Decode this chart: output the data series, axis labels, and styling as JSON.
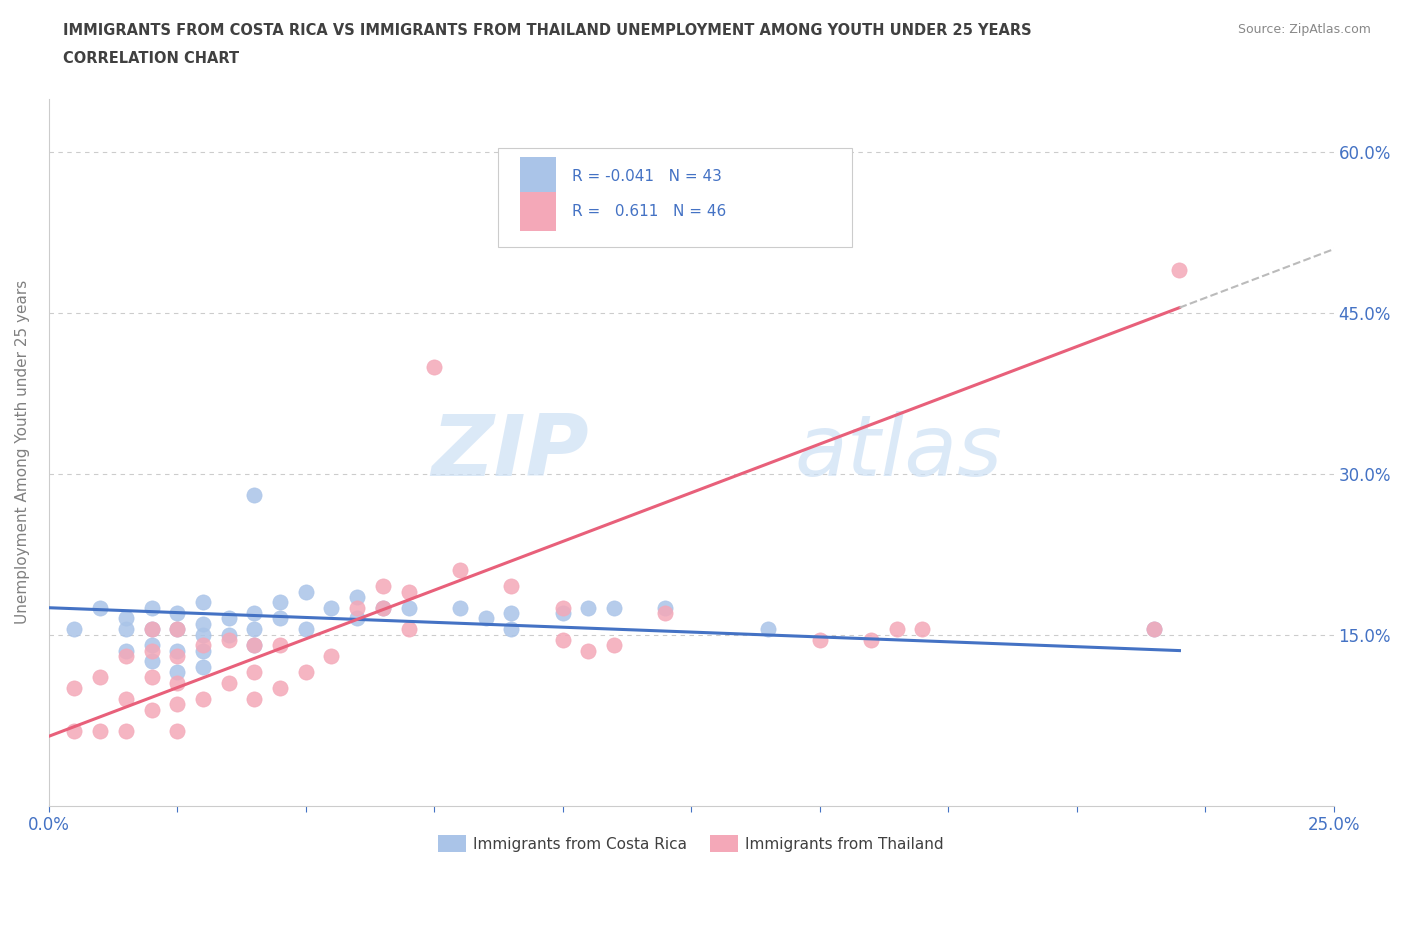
{
  "title_line1": "IMMIGRANTS FROM COSTA RICA VS IMMIGRANTS FROM THAILAND UNEMPLOYMENT AMONG YOUTH UNDER 25 YEARS",
  "title_line2": "CORRELATION CHART",
  "source_text": "Source: ZipAtlas.com",
  "ylabel": "Unemployment Among Youth under 25 years",
  "xlim": [
    0.0,
    0.25
  ],
  "ylim": [
    -0.01,
    0.65
  ],
  "yticks": [
    0.15,
    0.3,
    0.45,
    0.6
  ],
  "ytick_labels": [
    "15.0%",
    "30.0%",
    "45.0%",
    "60.0%"
  ],
  "xticks": [
    0.0,
    0.025,
    0.05,
    0.075,
    0.1,
    0.125,
    0.15,
    0.175,
    0.2,
    0.225,
    0.25
  ],
  "xtick_labels_show": [
    "0.0%",
    "",
    "",
    "",
    "",
    "",
    "",
    "",
    "",
    "",
    "25.0%"
  ],
  "grid_color": "#cccccc",
  "watermark_zip": "ZIP",
  "watermark_atlas": "atlas",
  "legend_R1": "R = -0.041",
  "legend_N1": "N = 43",
  "legend_R2": "R =   0.611",
  "legend_N2": "N = 46",
  "costa_rica_color": "#aac4e8",
  "thailand_color": "#f4a8b8",
  "trend_costa_rica_color": "#4472c4",
  "trend_thailand_color": "#e8607a",
  "trend_dashed_color": "#bbbbbb",
  "costa_rica_x": [
    0.005,
    0.01,
    0.015,
    0.015,
    0.015,
    0.02,
    0.02,
    0.02,
    0.02,
    0.025,
    0.025,
    0.025,
    0.025,
    0.03,
    0.03,
    0.03,
    0.03,
    0.03,
    0.035,
    0.035,
    0.04,
    0.04,
    0.04,
    0.04,
    0.045,
    0.045,
    0.05,
    0.05,
    0.055,
    0.06,
    0.06,
    0.065,
    0.07,
    0.08,
    0.085,
    0.09,
    0.09,
    0.1,
    0.105,
    0.11,
    0.12,
    0.14,
    0.215
  ],
  "costa_rica_y": [
    0.155,
    0.175,
    0.135,
    0.155,
    0.165,
    0.125,
    0.14,
    0.155,
    0.175,
    0.115,
    0.135,
    0.155,
    0.17,
    0.12,
    0.135,
    0.15,
    0.16,
    0.18,
    0.15,
    0.165,
    0.14,
    0.155,
    0.17,
    0.28,
    0.165,
    0.18,
    0.155,
    0.19,
    0.175,
    0.165,
    0.185,
    0.175,
    0.175,
    0.175,
    0.165,
    0.155,
    0.17,
    0.17,
    0.175,
    0.175,
    0.175,
    0.155,
    0.155
  ],
  "thailand_x": [
    0.005,
    0.005,
    0.01,
    0.01,
    0.015,
    0.015,
    0.015,
    0.02,
    0.02,
    0.02,
    0.02,
    0.025,
    0.025,
    0.025,
    0.025,
    0.025,
    0.03,
    0.03,
    0.035,
    0.035,
    0.04,
    0.04,
    0.04,
    0.045,
    0.045,
    0.05,
    0.055,
    0.06,
    0.065,
    0.065,
    0.07,
    0.07,
    0.075,
    0.08,
    0.09,
    0.1,
    0.1,
    0.105,
    0.11,
    0.12,
    0.15,
    0.16,
    0.165,
    0.17,
    0.215,
    0.22
  ],
  "thailand_y": [
    0.06,
    0.1,
    0.06,
    0.11,
    0.06,
    0.09,
    0.13,
    0.08,
    0.11,
    0.135,
    0.155,
    0.06,
    0.085,
    0.105,
    0.13,
    0.155,
    0.09,
    0.14,
    0.105,
    0.145,
    0.09,
    0.115,
    0.14,
    0.1,
    0.14,
    0.115,
    0.13,
    0.175,
    0.175,
    0.195,
    0.155,
    0.19,
    0.4,
    0.21,
    0.195,
    0.145,
    0.175,
    0.135,
    0.14,
    0.17,
    0.145,
    0.145,
    0.155,
    0.155,
    0.155,
    0.49
  ],
  "background_color": "#ffffff",
  "tick_label_color": "#4472c4",
  "title_color": "#404040",
  "axis_label_color": "#808080",
  "trend_th_x0": 0.0,
  "trend_th_y0": 0.055,
  "trend_th_x1": 0.22,
  "trend_th_y1": 0.455,
  "trend_cr_x0": 0.0,
  "trend_cr_y0": 0.175,
  "trend_cr_x1": 0.22,
  "trend_cr_y1": 0.135
}
